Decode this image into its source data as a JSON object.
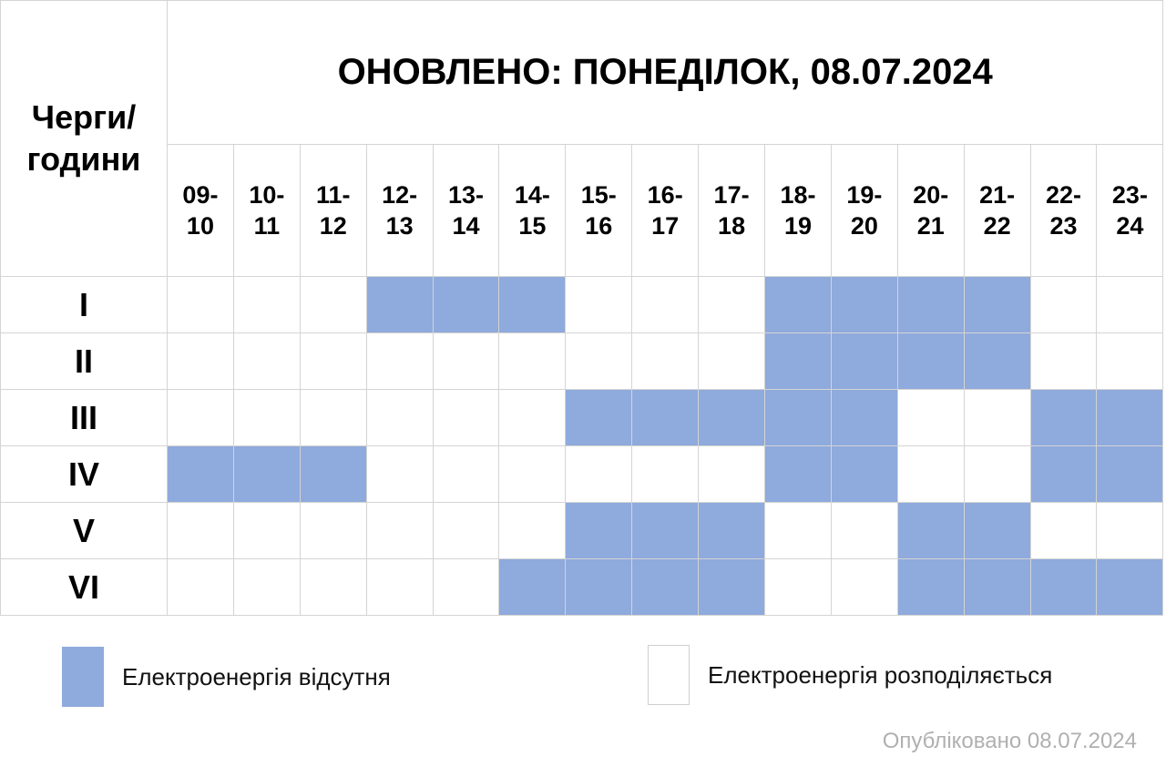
{
  "corner_label": [
    "Черги/",
    "години"
  ],
  "title": "ОНОВЛЕНО: ПОНЕДІЛОК, 08.07.2024",
  "hours": [
    [
      "09-",
      "10"
    ],
    [
      "10-",
      "11"
    ],
    [
      "11-",
      "12"
    ],
    [
      "12-",
      "13"
    ],
    [
      "13-",
      "14"
    ],
    [
      "14-",
      "15"
    ],
    [
      "15-",
      "16"
    ],
    [
      "16-",
      "17"
    ],
    [
      "17-",
      "18"
    ],
    [
      "18-",
      "19"
    ],
    [
      "19-",
      "20"
    ],
    [
      "20-",
      "21"
    ],
    [
      "21-",
      "22"
    ],
    [
      "22-",
      "23"
    ],
    [
      "23-",
      "24"
    ]
  ],
  "queues": [
    {
      "name": "I",
      "outages": [
        0,
        0,
        0,
        1,
        1,
        1,
        0,
        0,
        0,
        1,
        1,
        1,
        1,
        0,
        0
      ]
    },
    {
      "name": "II",
      "outages": [
        0,
        0,
        0,
        0,
        0,
        0,
        0,
        0,
        0,
        1,
        1,
        1,
        1,
        0,
        0
      ]
    },
    {
      "name": "III",
      "outages": [
        0,
        0,
        0,
        0,
        0,
        0,
        1,
        1,
        1,
        1,
        1,
        0,
        0,
        1,
        1
      ]
    },
    {
      "name": "IV",
      "outages": [
        1,
        1,
        1,
        0,
        0,
        0,
        0,
        0,
        0,
        1,
        1,
        0,
        0,
        1,
        1
      ]
    },
    {
      "name": "V",
      "outages": [
        0,
        0,
        0,
        0,
        0,
        0,
        1,
        1,
        1,
        0,
        0,
        1,
        1,
        0,
        0
      ]
    },
    {
      "name": "VI",
      "outages": [
        0,
        0,
        0,
        0,
        0,
        1,
        1,
        1,
        1,
        0,
        0,
        1,
        1,
        1,
        1
      ]
    }
  ],
  "legend": {
    "off_label": "Електроенергія відсутня",
    "on_label": "Електроенергія розподіляється"
  },
  "colors": {
    "outage": "#8faadc",
    "available": "#ffffff"
  },
  "published": "Опубліковано 08.07.2024"
}
